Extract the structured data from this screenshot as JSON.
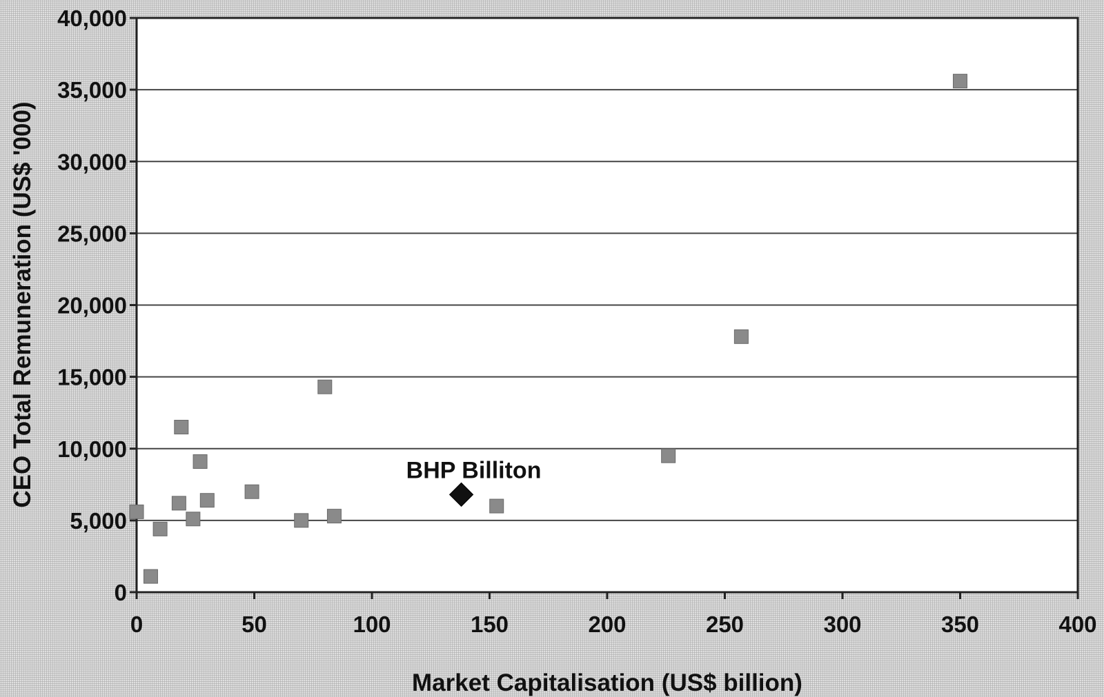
{
  "chart_data": {
    "type": "scatter",
    "title": "",
    "xlabel": "Market Capitalisation (US$ billion)",
    "ylabel": "CEO Total Remuneration (US$ '000)",
    "xlim": [
      0,
      400
    ],
    "ylim": [
      0,
      40000
    ],
    "x_ticks": [
      0,
      50,
      100,
      150,
      200,
      250,
      300,
      350,
      400
    ],
    "x_tick_labels": [
      "0",
      "50",
      "100",
      "150",
      "200",
      "250",
      "300",
      "350",
      "400"
    ],
    "y_ticks": [
      0,
      5000,
      10000,
      15000,
      20000,
      25000,
      30000,
      35000,
      40000
    ],
    "y_tick_labels": [
      "0",
      "5,000",
      "10,000",
      "15,000",
      "20,000",
      "25,000",
      "30,000",
      "35,000",
      "40,000"
    ],
    "grid": "horizontal",
    "legend": "none",
    "series": [
      {
        "marker": "square",
        "color": "#8a8a8a",
        "points": [
          {
            "x": 0,
            "y": 5600
          },
          {
            "x": 6,
            "y": 1100
          },
          {
            "x": 10,
            "y": 4400
          },
          {
            "x": 18,
            "y": 6200
          },
          {
            "x": 19,
            "y": 11500
          },
          {
            "x": 24,
            "y": 5100
          },
          {
            "x": 27,
            "y": 9100
          },
          {
            "x": 30,
            "y": 6400
          },
          {
            "x": 49,
            "y": 7000
          },
          {
            "x": 70,
            "y": 5000
          },
          {
            "x": 80,
            "y": 14300
          },
          {
            "x": 84,
            "y": 5300
          },
          {
            "x": 153,
            "y": 6000
          },
          {
            "x": 226,
            "y": 9500
          },
          {
            "x": 257,
            "y": 17800
          },
          {
            "x": 350,
            "y": 35600
          }
        ]
      },
      {
        "marker": "diamond",
        "color": "#111111",
        "points": [
          {
            "x": 138,
            "y": 6800
          }
        ]
      }
    ],
    "annotations": [
      {
        "text": "BHP Billiton",
        "x": 138,
        "y": 6800
      }
    ]
  }
}
